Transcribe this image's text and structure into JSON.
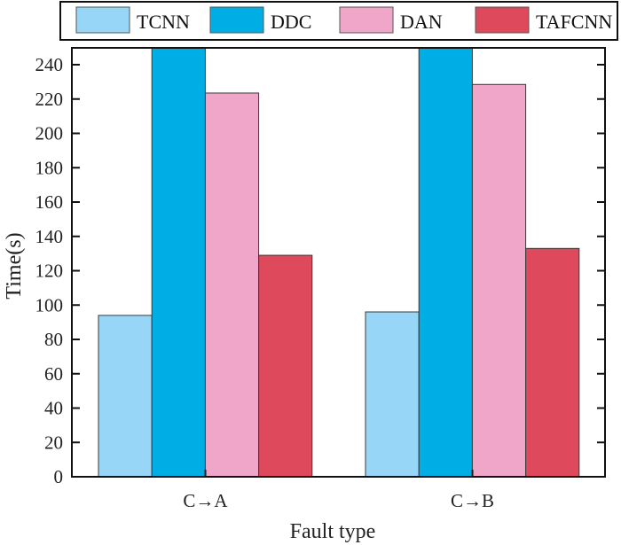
{
  "chart_data": {
    "type": "bar",
    "title": "",
    "xlabel": "Fault type",
    "ylabel": "Time(s)",
    "categories": [
      "C→A",
      "C→B"
    ],
    "series": [
      {
        "name": "TCNN",
        "color": "#98d6f7",
        "values": [
          94,
          96
        ]
      },
      {
        "name": "DDC",
        "color": "#00aee6",
        "values": [
          250,
          250
        ]
      },
      {
        "name": "DAN",
        "color": "#efa6c8",
        "values": [
          223.5,
          228.5
        ]
      },
      {
        "name": "TAFCNN",
        "color": "#de4a5c",
        "values": [
          129,
          133
        ]
      }
    ],
    "ylim": [
      0,
      250
    ],
    "yticks": [
      0,
      20,
      40,
      60,
      80,
      100,
      120,
      140,
      160,
      180,
      200,
      220,
      240
    ],
    "grid": false,
    "legend_position": "top",
    "note": "DDC bars exceed the visible y-axis range (clipped at top)"
  }
}
